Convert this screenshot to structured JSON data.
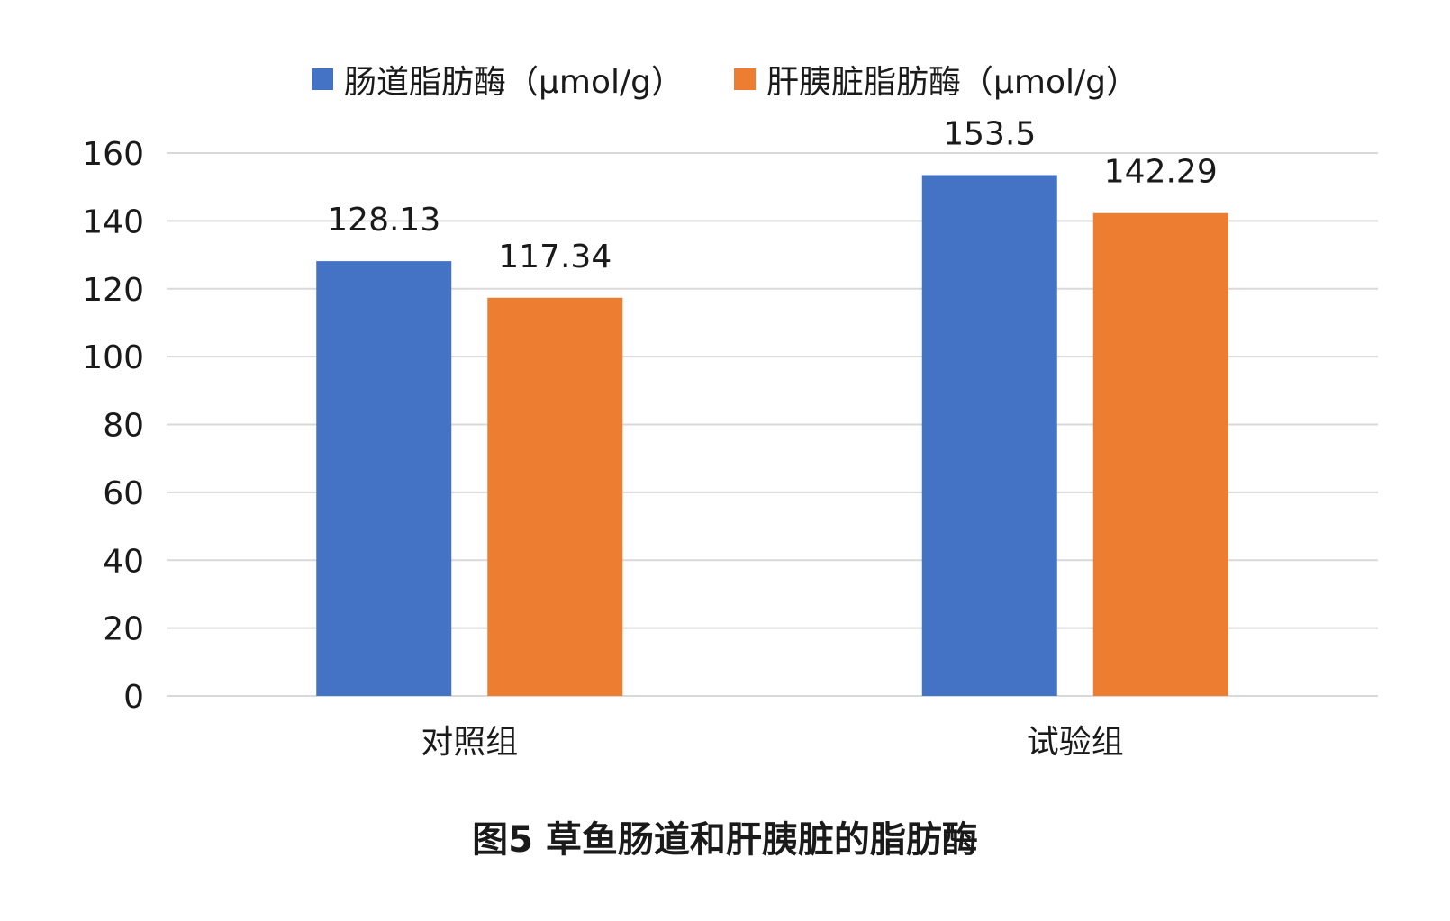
{
  "chart_data": {
    "type": "bar",
    "categories": [
      "对照组",
      "试验组"
    ],
    "series": [
      {
        "name": "肠道脂肪酶（μmol/g）",
        "values": [
          128.13,
          153.5
        ],
        "labels": [
          "128.13",
          "153.5"
        ],
        "color": "#4472C4"
      },
      {
        "name": "肝胰脏脂肪酶（μmol/g）",
        "values": [
          117.34,
          142.29
        ],
        "labels": [
          "117.34",
          "142.29"
        ],
        "color": "#ED7D31"
      }
    ],
    "ylim": [
      0,
      160
    ],
    "yticks": [
      0,
      20,
      40,
      60,
      80,
      100,
      120,
      140,
      160
    ],
    "grid": true,
    "legend_position": "top-center",
    "xlabel": "",
    "ylabel": "",
    "gridline_color": "#D9D9D9"
  },
  "caption": "图5 草鱼肠道和肝胰脏的脂肪酶"
}
